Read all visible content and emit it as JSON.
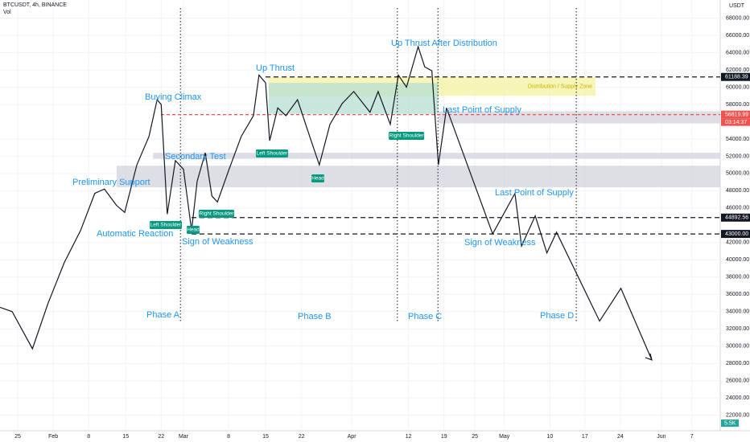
{
  "chart_data": {
    "type": "line",
    "title": "BTCUSDT, 4h, BINANCE",
    "subtitle": "Vol",
    "y_unit": "USDT",
    "xlim": [
      -3.5,
      138.6
    ],
    "ylim": [
      20200,
      70100
    ],
    "xticks": [
      {
        "value": 0,
        "label": "25"
      },
      {
        "value": 7,
        "label": "Feb"
      },
      {
        "value": 14,
        "label": "8"
      },
      {
        "value": 21.3,
        "label": "15"
      },
      {
        "value": 28.3,
        "label": "22"
      },
      {
        "value": 32.7,
        "label": "Mar"
      },
      {
        "value": 41.6,
        "label": "8"
      },
      {
        "value": 48.9,
        "label": "15"
      },
      {
        "value": 56,
        "label": "22"
      },
      {
        "value": 65.9,
        "label": "Apr"
      },
      {
        "value": 77.1,
        "label": "12"
      },
      {
        "value": 84.1,
        "label": "19"
      },
      {
        "value": 90.2,
        "label": "25"
      },
      {
        "value": 96,
        "label": "May"
      },
      {
        "value": 105,
        "label": "10"
      },
      {
        "value": 111.9,
        "label": "17"
      },
      {
        "value": 118.9,
        "label": "24"
      },
      {
        "value": 127,
        "label": "Jun"
      },
      {
        "value": 133,
        "label": "7"
      }
    ],
    "yticks": [
      {
        "value": 22000,
        "label": "22000.00"
      },
      {
        "value": 24000,
        "label": "24000.00"
      },
      {
        "value": 26000,
        "label": "26000.00"
      },
      {
        "value": 28000,
        "label": "28000.00"
      },
      {
        "value": 30000,
        "label": "30000.00"
      },
      {
        "value": 32000,
        "label": "32000.00"
      },
      {
        "value": 34000,
        "label": "34000.00"
      },
      {
        "value": 36000,
        "label": "36000.00"
      },
      {
        "value": 38000,
        "label": "38000.00"
      },
      {
        "value": 40000,
        "label": "40000.00"
      },
      {
        "value": 42000,
        "label": "42000.00"
      },
      {
        "value": 46000,
        "label": "46000.00"
      },
      {
        "value": 48000,
        "label": "48000.00"
      },
      {
        "value": 50000,
        "label": "50000.00"
      },
      {
        "value": 52000,
        "label": "52000.00"
      },
      {
        "value": 54000,
        "label": "54000.00"
      },
      {
        "value": 58000,
        "label": "58000.00"
      },
      {
        "value": 60000,
        "label": "60000.00"
      },
      {
        "value": 62000,
        "label": "62000.00"
      },
      {
        "value": 64000,
        "label": "64000.00"
      },
      {
        "value": 66000,
        "label": "66000.00"
      },
      {
        "value": 68000,
        "label": "68000.00"
      }
    ],
    "grid": true,
    "series": [
      {
        "color": "#131722",
        "x": [
          -3.5,
          -1.1,
          2.9,
          6,
          9.2,
          12.4,
          15.2,
          17.1,
          19.5,
          21.1,
          23.5,
          25.9,
          27.5,
          28.3,
          29.5,
          31.1,
          32.7,
          34.3,
          35.4,
          37,
          38.3,
          39.4,
          41.7,
          44.1,
          46.5,
          47.6,
          48.9,
          49.7,
          51.3,
          52.9,
          55.2,
          57.6,
          59.5,
          61.6,
          64,
          66.3,
          69.5,
          71.1,
          73.5,
          75.1,
          76.7,
          79,
          80.3,
          81.7,
          83,
          84.6
        ],
        "values": [
          34500,
          34000,
          29700,
          35000,
          39700,
          43400,
          47700,
          48200,
          46300,
          45500,
          51000,
          54300,
          58550,
          58000,
          45300,
          51500,
          50500,
          43400,
          49100,
          52400,
          47400,
          46700,
          50500,
          54300,
          56700,
          61400,
          60500,
          53800,
          57600,
          56700,
          58550,
          54300,
          51000,
          55700,
          58100,
          59500,
          57100,
          59500,
          55700,
          61400,
          60000,
          64700,
          62350,
          61900,
          51000,
          57600
        ]
      },
      {
        "color": "#131722",
        "x": [
          84.6,
          93.7,
          98.1,
          99.4,
          102.1,
          104.4,
          106.3,
          114.8,
          119,
          125.1
        ],
        "values": [
          57600,
          43000,
          47700,
          41600,
          45100,
          40800,
          43200,
          32900,
          36700,
          28400
        ]
      }
    ],
    "levels": [
      {
        "value": 61188.39,
        "label": "61188.39"
      },
      {
        "value": 56819.99,
        "label": "56819.99"
      },
      {
        "value": 44892.56,
        "label": "44892.56"
      },
      {
        "value": 43000,
        "label": "43000.00"
      }
    ],
    "clock": "03:14:37",
    "volume_label": "5.5K",
    "phase_lines": [
      32.1,
      74.9,
      82.9,
      110.2
    ],
    "zones": [
      {
        "x": [
          49.5,
          114
        ],
        "y": [
          59000,
          61188.39
        ],
        "color": "#f4f1a0",
        "label": "Distribution / Supply Zone"
      },
      {
        "x": [
          49.5,
          83
        ],
        "y": [
          56900,
          60500
        ],
        "color": "#b7dfd0"
      },
      {
        "x": [
          19.5,
          138.6
        ],
        "y": [
          48400,
          50900
        ],
        "color": "#d1d4dc"
      },
      {
        "x": [
          26.7,
          138.6
        ],
        "y": [
          51700,
          52400
        ],
        "color": "#d1d4dc"
      },
      {
        "x": [
          83,
          138.6
        ],
        "y": [
          55800,
          57200
        ],
        "color": "#d1d4dc"
      }
    ],
    "annotations": [
      "Buying Climax",
      "Secondary Test",
      "Preliminary Support",
      "Automatic Reaction",
      "Sign of Weakness",
      "Up Thrust",
      "Up Thrust After Distribution",
      "Last Point of Supply",
      "Last Point of Supply",
      "Sign of Weakness",
      "Phase A",
      "Phase B",
      "Phase C",
      "Phase D"
    ],
    "badges": [
      "Left Shoulder",
      "Head",
      "Right Shoulder",
      "Left Shoulder",
      "Head",
      "Right Shoulder"
    ]
  }
}
